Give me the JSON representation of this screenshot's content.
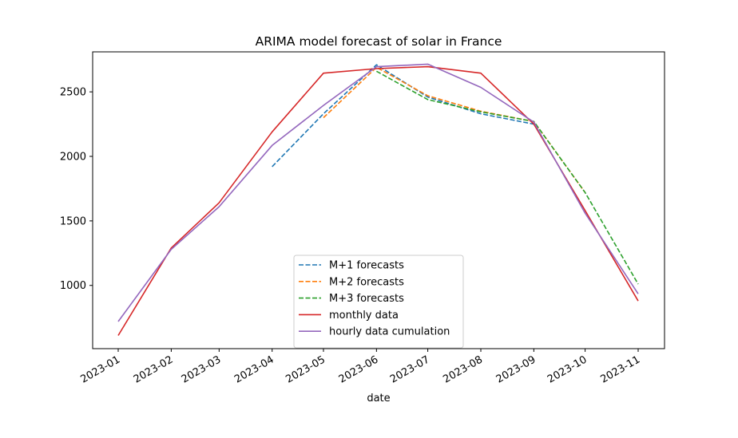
{
  "chart_data": {
    "type": "line",
    "title": "ARIMA model forecast of solar in France",
    "xlabel": "date",
    "ylabel": "",
    "x_ticks": [
      "2023-01",
      "2023-02",
      "2023-03",
      "2023-04",
      "2023-05",
      "2023-06",
      "2023-07",
      "2023-08",
      "2023-09",
      "2023-10",
      "2023-11"
    ],
    "y_ticks": [
      1000,
      1500,
      2000,
      2500
    ],
    "ylim": [
      510,
      2810
    ],
    "grid": false,
    "legend_position": "lower center",
    "series": [
      {
        "name": "M+1 forecasts",
        "color": "#1f77b4",
        "style": "dashed",
        "x": [
          "2023-04",
          "2023-05",
          "2023-06",
          "2023-07",
          "2023-08",
          "2023-09"
        ],
        "y": [
          1920,
          2330,
          2710,
          2460,
          2330,
          2250
        ]
      },
      {
        "name": "M+2 forecasts",
        "color": "#ff7f0e",
        "style": "dashed",
        "x": [
          "2023-05",
          "2023-06",
          "2023-07",
          "2023-08",
          "2023-09",
          "2023-10"
        ],
        "y": [
          2300,
          2690,
          2470,
          2350,
          2270,
          1720
        ]
      },
      {
        "name": "M+3 forecasts",
        "color": "#2ca02c",
        "style": "dashed",
        "x": [
          "2023-06",
          "2023-07",
          "2023-08",
          "2023-09",
          "2023-10",
          "2023-11"
        ],
        "y": [
          2660,
          2440,
          2345,
          2270,
          1720,
          1010
        ]
      },
      {
        "name": "monthly data",
        "color": "#d62728",
        "style": "solid",
        "x": [
          "2023-01",
          "2023-02",
          "2023-03",
          "2023-04",
          "2023-05",
          "2023-06",
          "2023-07",
          "2023-08",
          "2023-09",
          "2023-10",
          "2023-11"
        ],
        "y": [
          612,
          1290,
          1640,
          2190,
          2645,
          2680,
          2695,
          2645,
          2250,
          1580,
          880
        ]
      },
      {
        "name": "hourly data cumulation",
        "color": "#9467bd",
        "style": "solid",
        "x": [
          "2023-01",
          "2023-02",
          "2023-03",
          "2023-04",
          "2023-05",
          "2023-06",
          "2023-07",
          "2023-08",
          "2023-09",
          "2023-10",
          "2023-11"
        ],
        "y": [
          720,
          1280,
          1610,
          2085,
          2395,
          2695,
          2715,
          2535,
          2265,
          1560,
          935
        ]
      }
    ]
  }
}
